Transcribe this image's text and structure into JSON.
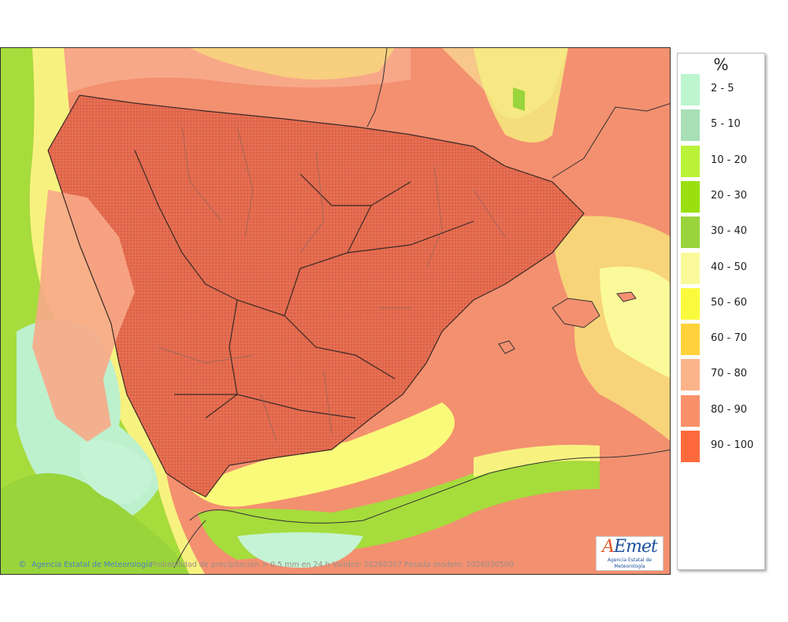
{
  "map": {
    "credit": "Agencia Estatal de Meteorología",
    "caption": "Probabilidad de precipitación > 0.5 mm en 24 h Validez: 20260307 Pasada modelo: 2026030500",
    "logo_text": "AEmet",
    "logo_subtitle": "Agencia Estatal de Meteorología"
  },
  "legend": {
    "title": "%",
    "items": [
      {
        "label": "2 - 5",
        "color": "#bdf5cf"
      },
      {
        "label": "5 - 10",
        "color": "#a8dfb5"
      },
      {
        "label": "10 - 20",
        "color": "#baf238"
      },
      {
        "label": "20 - 30",
        "color": "#9ae010"
      },
      {
        "label": "30 - 40",
        "color": "#98d43a"
      },
      {
        "label": "40 - 50",
        "color": "#fafa9a"
      },
      {
        "label": "50 - 60",
        "color": "#fafa3c"
      },
      {
        "label": "60 - 70",
        "color": "#ffd23c"
      },
      {
        "label": "70 - 80",
        "color": "#fbb48a"
      },
      {
        "label": "80 - 90",
        "color": "#f9906a"
      },
      {
        "label": "90 - 100",
        "color": "#ff6a3c"
      }
    ]
  }
}
